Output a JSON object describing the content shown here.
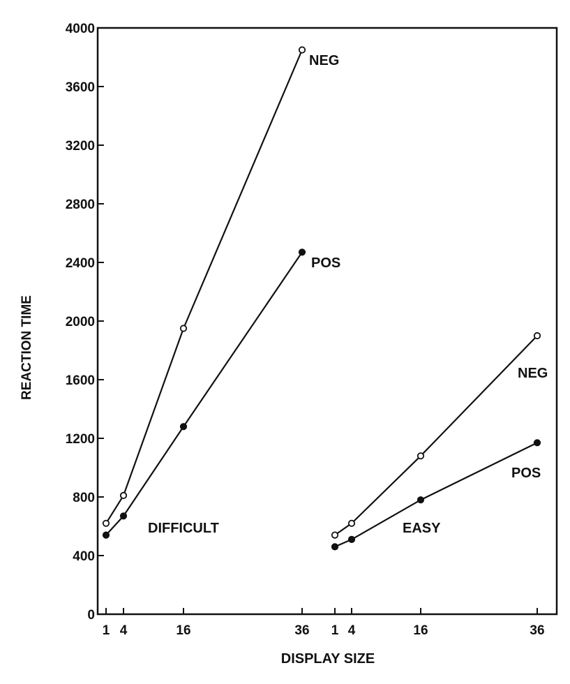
{
  "chart_data": {
    "type": "line",
    "xlabel": "DISPLAY SIZE",
    "ylabel": "REACTION TIME",
    "ylim": [
      0,
      4000
    ],
    "y_ticks": [
      0,
      400,
      800,
      1200,
      1600,
      2000,
      2400,
      2800,
      3200,
      3600,
      4000
    ],
    "grid": false,
    "panels": [
      {
        "label": "DIFFICULT",
        "x_ticks": [
          1,
          4,
          16,
          36
        ],
        "series": [
          {
            "name": "NEG",
            "marker": "open",
            "x": [
              1,
              4,
              16,
              36
            ],
            "y": [
              620,
              810,
              1950,
              3850
            ]
          },
          {
            "name": "POS",
            "marker": "filled",
            "x": [
              1,
              4,
              16,
              36
            ],
            "y": [
              540,
              670,
              1280,
              2470
            ]
          }
        ]
      },
      {
        "label": "EASY",
        "x_ticks": [
          1,
          4,
          16,
          36
        ],
        "series": [
          {
            "name": "NEG",
            "marker": "open",
            "x": [
              1,
              4,
              16,
              36
            ],
            "y": [
              540,
              620,
              1080,
              1900
            ]
          },
          {
            "name": "POS",
            "marker": "filled",
            "x": [
              1,
              4,
              16,
              36
            ],
            "y": [
              460,
              510,
              780,
              1170
            ]
          }
        ]
      }
    ]
  }
}
